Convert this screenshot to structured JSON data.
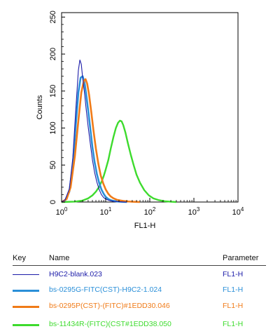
{
  "chart_data": {
    "type": "line",
    "title": "",
    "xlabel": "FL1-H",
    "ylabel": "Counts",
    "xscale": "log",
    "xlim": [
      1,
      10000
    ],
    "ylim": [
      0,
      256
    ],
    "x_ticks": [
      {
        "value": 1,
        "base": "10",
        "exp": "0"
      },
      {
        "value": 10,
        "base": "10",
        "exp": "1"
      },
      {
        "value": 100,
        "base": "10",
        "exp": "2"
      },
      {
        "value": 1000,
        "base": "10",
        "exp": "3"
      },
      {
        "value": 10000,
        "base": "10",
        "exp": "4"
      }
    ],
    "y_ticks": [
      "0",
      "50",
      "100",
      "150",
      "200",
      "250"
    ],
    "series": [
      {
        "name": "H9C2-blank.023",
        "color": "#1b1ba8",
        "x": [
          1.0,
          1.2,
          1.5,
          1.8,
          2.1,
          2.4,
          2.6,
          2.8,
          3.0,
          3.3,
          3.6,
          4.0,
          4.5,
          5.0,
          5.6,
          6.3,
          7.1,
          8.0,
          9.0,
          10.0,
          11.5,
          13.0,
          15.0,
          18.0,
          22.0,
          26.0,
          30.0
        ],
        "y": [
          0,
          3,
          18,
          60,
          125,
          178,
          192,
          186,
          168,
          148,
          126,
          102,
          78,
          57,
          40,
          27,
          17,
          10,
          6,
          4,
          2.5,
          1.6,
          1,
          0.6,
          0.3,
          0.1,
          0
        ]
      },
      {
        "name": "bs-0295G-FITC(CST)-H9C2-1.024",
        "color": "#2a8fd8",
        "x": [
          1.0,
          1.2,
          1.5,
          1.8,
          2.1,
          2.4,
          2.7,
          3.0,
          3.3,
          3.6,
          4.0,
          4.5,
          5.0,
          5.6,
          6.3,
          7.1,
          8.0,
          9.0,
          10.0,
          11.5,
          13.0,
          15.0,
          18.0,
          22.0,
          26.0,
          30.0
        ],
        "y": [
          0,
          2,
          14,
          50,
          105,
          148,
          168,
          170,
          162,
          146,
          124,
          98,
          74,
          54,
          38,
          26,
          17,
          11,
          7,
          4,
          2.5,
          1.5,
          0.8,
          0.4,
          0.2,
          0
        ]
      },
      {
        "name": "bs-0295P(CST)-(FITC)#1EDD30.046",
        "color": "#f07b18",
        "x": [
          1.0,
          1.3,
          1.6,
          2.0,
          2.4,
          2.8,
          3.2,
          3.5,
          3.8,
          4.2,
          4.7,
          5.3,
          6.0,
          6.8,
          7.7,
          8.8,
          10.0,
          11.5,
          13.0,
          15.0,
          18.0,
          22.0,
          27.0,
          33.0,
          40.0,
          50.0,
          60.0
        ],
        "y": [
          0,
          4,
          20,
          62,
          110,
          148,
          164,
          166,
          160,
          145,
          122,
          96,
          72,
          52,
          36,
          25,
          17,
          11,
          7.5,
          5,
          3,
          2,
          1.2,
          0.7,
          0.4,
          0.2,
          0
        ]
      },
      {
        "name": "bs-11434R-(FITC)(CST#1EDD38.050",
        "color": "#3ddb2d",
        "x": [
          1.0,
          2.0,
          3.0,
          4.0,
          5.0,
          6.0,
          7.0,
          8.0,
          9.0,
          10.0,
          11.5,
          13.0,
          15.0,
          17.0,
          19.0,
          21.0,
          23.0,
          25.0,
          28.0,
          32.0,
          37.0,
          43.0,
          50.0,
          60.0,
          75.0,
          95.0,
          120.0,
          160.0,
          220.0,
          300.0,
          400.0
        ],
        "y": [
          0,
          0.5,
          2,
          5,
          9,
          14,
          20,
          27,
          35,
          44,
          57,
          72,
          88,
          100,
          107,
          110,
          109,
          104,
          94,
          79,
          64,
          50,
          37,
          26,
          16,
          9,
          5,
          2.5,
          1,
          0.4,
          0
        ]
      }
    ]
  },
  "key_table": {
    "headers": {
      "key": "Key",
      "name": "Name",
      "parameter": "Parameter"
    },
    "rows": [
      {
        "name": "H9C2-blank.023",
        "parameter": "FL1-H",
        "color": "#1b1ba8"
      },
      {
        "name": "bs-0295G-FITC(CST)-H9C2-1.024",
        "parameter": "FL1-H",
        "color": "#2a8fd8"
      },
      {
        "name": "bs-0295P(CST)-(FITC)#1EDD30.046",
        "parameter": "FL1-H",
        "color": "#f07b18"
      },
      {
        "name": "bs-11434R-(FITC)(CST#1EDD38.050",
        "parameter": "FL1-H",
        "color": "#3ddb2d"
      }
    ]
  }
}
